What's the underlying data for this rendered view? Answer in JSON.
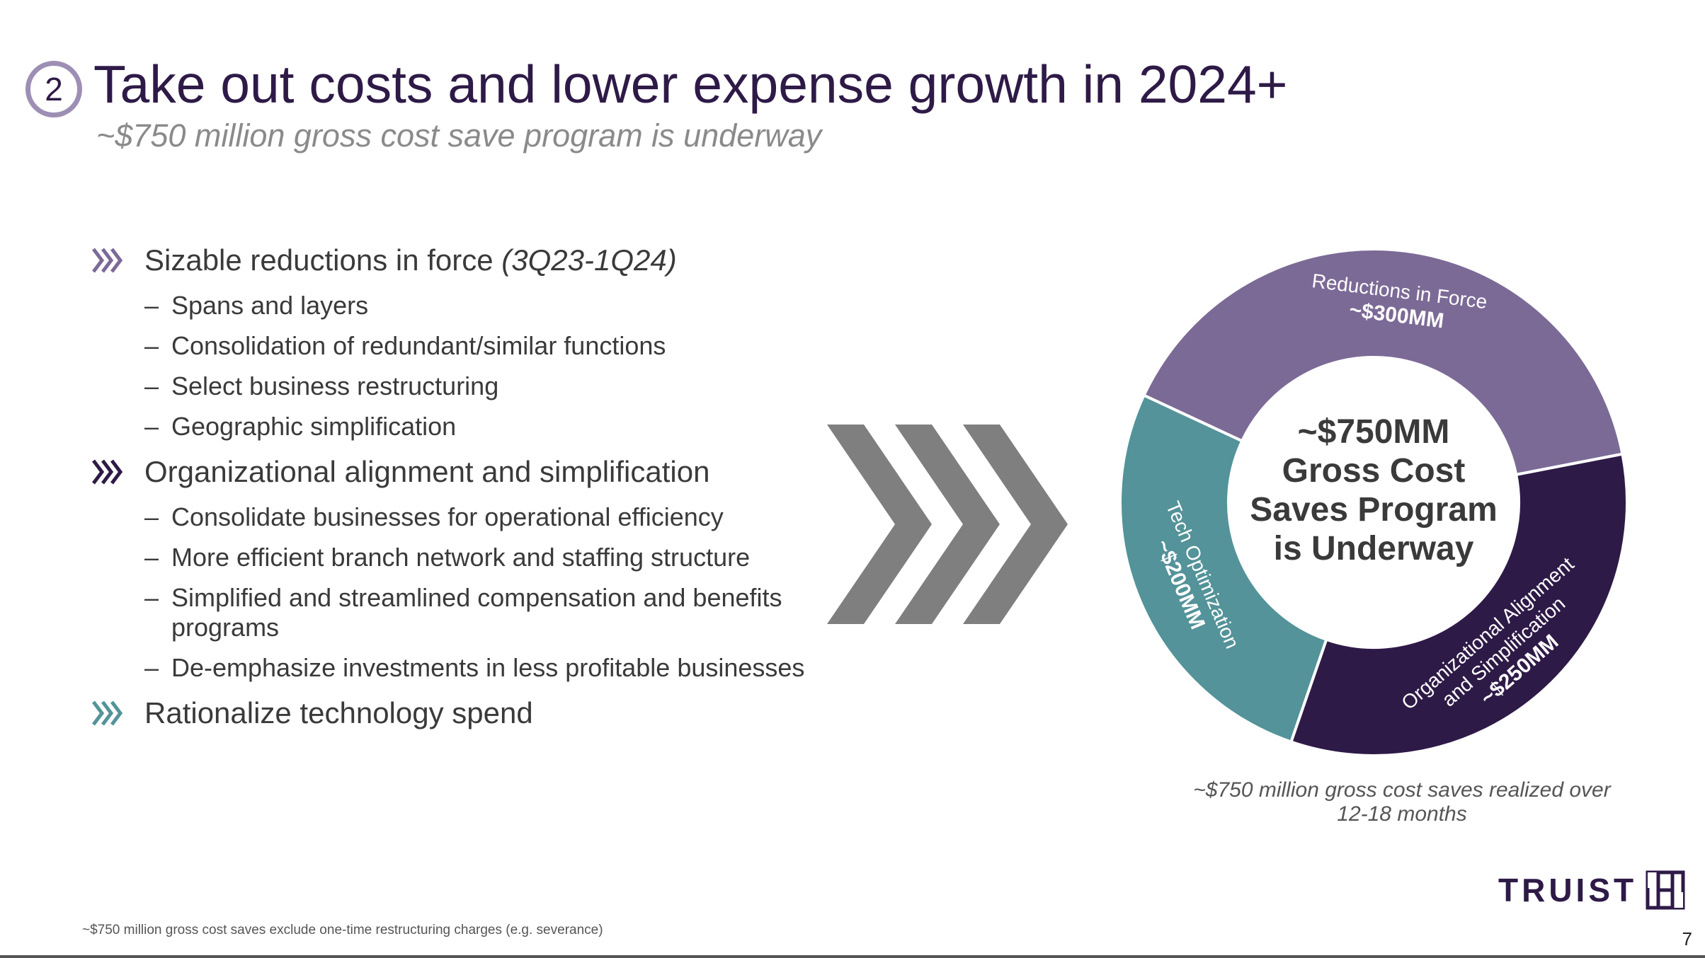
{
  "header": {
    "badge_number": "2",
    "title": "Take out costs and lower expense growth in 2024+",
    "subtitle": "~$750 million gross cost save program is underway"
  },
  "bullets": [
    {
      "label": "Sizable reductions in force",
      "note": "(3Q23-1Q24)",
      "chevron_color": "#7b6a96",
      "items": [
        "Spans and layers",
        "Consolidation of redundant/similar functions",
        "Select business restructuring",
        "Geographic simplification"
      ]
    },
    {
      "label": "Organizational alignment and simplification",
      "note": "",
      "chevron_color": "#2e1a47",
      "items": [
        "Consolidate businesses for operational efficiency",
        "More efficient branch network and staffing structure",
        "Simplified and streamlined compensation and benefits programs",
        "De-emphasize investments in less profitable businesses"
      ]
    },
    {
      "label": "Rationalize technology spend",
      "note": "",
      "chevron_color": "#539399",
      "items": []
    }
  ],
  "chart_data": {
    "type": "pie",
    "title": "",
    "center_label": [
      "~$750MM",
      "Gross Cost",
      "Saves Program",
      "is Underway"
    ],
    "unit": "$MM",
    "series": [
      {
        "name": "Reductions in Force",
        "display": "~$300MM",
        "value": 300,
        "color": "#7b6a96"
      },
      {
        "name": "Organizational Alignment and Simplification",
        "name_lines": [
          "Organizational Alignment",
          "and Simplification"
        ],
        "display": "~$250MM",
        "value": 250,
        "color": "#2e1a47"
      },
      {
        "name": "Tech Optimization",
        "display": "~$200MM",
        "value": 200,
        "color": "#539399"
      }
    ]
  },
  "donut_note": "~$750 million gross cost saves realized over 12-18 months",
  "footnote": "~$750 million gross cost saves exclude one-time restructuring charges (e.g. severance)",
  "logo": {
    "text": "TRUIST",
    "color": "#2e1a47"
  },
  "page_number": "7",
  "colors": {
    "brand": "#2e1a47",
    "chevron_gray": "#7f7f7f",
    "subtitle_gray": "#8a8a8a"
  }
}
